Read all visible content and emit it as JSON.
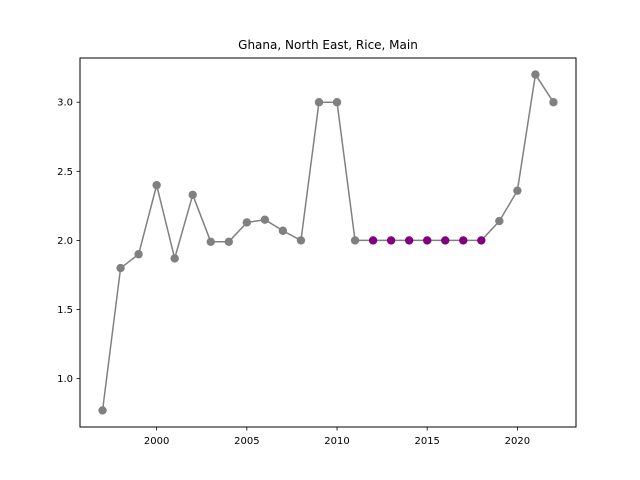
{
  "chart_data": {
    "type": "line",
    "title": "Ghana, North East, Rice, Main",
    "xlabel": "",
    "ylabel": "",
    "xlim": [
      1995.75,
      2023.25
    ],
    "ylim": [
      0.65,
      3.32
    ],
    "x_ticks": [
      2000,
      2005,
      2010,
      2015,
      2020
    ],
    "y_ticks": [
      1.0,
      1.5,
      2.0,
      2.5,
      3.0
    ],
    "x_tick_labels": [
      "2000",
      "2005",
      "2010",
      "2015",
      "2020"
    ],
    "y_tick_labels": [
      "1.0",
      "1.5",
      "2.0",
      "2.5",
      "3.0"
    ],
    "grid": false,
    "line_color": "#808080",
    "highlight_color": "#800080",
    "series": [
      {
        "x": [
          1997,
          1998,
          1999,
          2000,
          2001,
          2002,
          2003,
          2004,
          2005,
          2006,
          2007,
          2008,
          2009,
          2010,
          2011,
          2012,
          2013,
          2014,
          2015,
          2016,
          2017,
          2018,
          2019,
          2020,
          2021,
          2022
        ],
        "values": [
          0.77,
          1.8,
          1.9,
          2.4,
          1.87,
          2.33,
          1.99,
          1.99,
          2.13,
          2.15,
          2.07,
          2.0,
          3.0,
          3.0,
          2.0,
          2.0,
          2.0,
          2.0,
          2.0,
          2.0,
          2.0,
          2.0,
          2.14,
          2.36,
          3.2,
          3.0
        ],
        "highlighted": [
          false,
          false,
          false,
          false,
          false,
          false,
          false,
          false,
          false,
          false,
          false,
          false,
          false,
          false,
          false,
          true,
          true,
          true,
          true,
          true,
          true,
          true,
          false,
          false,
          false,
          false
        ]
      }
    ]
  }
}
